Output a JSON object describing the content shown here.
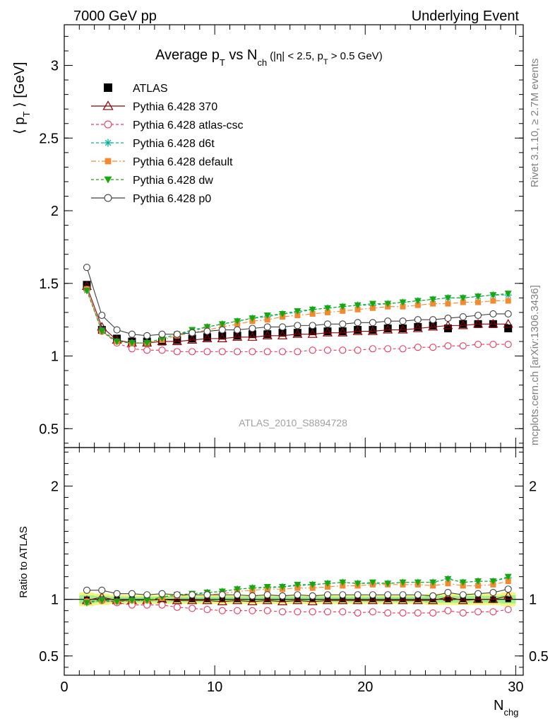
{
  "header": {
    "left": "7000 GeV pp",
    "right": "Underlying Event"
  },
  "side_texts": {
    "rivet": "Rivet 3.1.10, ≥ 2.7M events",
    "mcplots": "mcplots.cern.ch [arXiv:1306.3436]"
  },
  "chart_data": [
    {
      "type": "line",
      "title": "Average pT vs Nch (|η| < 2.5, pT > 0.5 GeV)",
      "title_parts": {
        "main": "Average p",
        "sub1": "T",
        "mid": " vs N",
        "sub2": "ch",
        "cut": "(|η| < 2.5, p",
        "sub3": "T",
        "cut_end": " > 0.5 GeV)"
      },
      "ylabel": "⟨ pT ⟩ [GeV]",
      "ylabel_parts": {
        "open": "⟨ p",
        "sub": "T",
        "close": " ⟩ [GeV]"
      },
      "watermark": "ATLAS_2010_S8894728",
      "xlim": [
        0,
        30.5
      ],
      "ylim": [
        0.37,
        3.28
      ],
      "yticks": [
        0.5,
        1,
        1.5,
        2,
        2.5,
        3
      ],
      "ytick_labels": [
        "0.5",
        "1",
        "1.5",
        "2",
        "2.5",
        "3"
      ],
      "x": [
        1.5,
        2.5,
        3.5,
        4.5,
        5.5,
        6.5,
        7.5,
        8.5,
        9.5,
        10.5,
        11.5,
        12.5,
        13.5,
        14.5,
        15.5,
        16.5,
        17.5,
        18.5,
        19.5,
        20.5,
        21.5,
        22.5,
        23.5,
        24.5,
        25.5,
        26.5,
        27.5,
        28.5,
        29.5
      ],
      "series": [
        {
          "name": "ATLAS",
          "marker": "filled-square",
          "color": "#000000",
          "dash": "none",
          "values": [
            1.49,
            1.18,
            1.12,
            1.1,
            1.1,
            1.1,
            1.11,
            1.12,
            1.13,
            1.14,
            1.14,
            1.15,
            1.15,
            1.16,
            1.16,
            1.17,
            1.17,
            1.17,
            1.18,
            1.18,
            1.19,
            1.19,
            1.2,
            1.21,
            1.19,
            1.22,
            1.22,
            1.22,
            1.19
          ]
        },
        {
          "name": "Pythia 6.428 370",
          "marker": "open-triangle",
          "color": "#8b0000",
          "dash": "solid",
          "values": [
            1.48,
            1.2,
            1.11,
            1.09,
            1.09,
            1.1,
            1.1,
            1.11,
            1.12,
            1.12,
            1.13,
            1.13,
            1.14,
            1.14,
            1.15,
            1.15,
            1.16,
            1.16,
            1.17,
            1.17,
            1.18,
            1.18,
            1.19,
            1.2,
            1.21,
            1.21,
            1.22,
            1.22,
            1.22
          ]
        },
        {
          "name": "Pythia 6.428 atlas-csc",
          "marker": "open-circle",
          "color": "#e8375f",
          "dash": "dashed",
          "values": [
            1.46,
            1.17,
            1.09,
            1.05,
            1.04,
            1.04,
            1.03,
            1.03,
            1.03,
            1.03,
            1.03,
            1.03,
            1.03,
            1.03,
            1.03,
            1.04,
            1.04,
            1.04,
            1.04,
            1.05,
            1.05,
            1.05,
            1.06,
            1.06,
            1.07,
            1.07,
            1.08,
            1.08,
            1.08
          ]
        },
        {
          "name": "Pythia 6.428 d6t",
          "marker": "star",
          "color": "#00b29b",
          "dash": "dashed",
          "values": [
            1.45,
            1.18,
            1.1,
            1.09,
            1.09,
            1.12,
            1.15,
            1.17,
            1.2,
            1.22,
            1.24,
            1.26,
            1.27,
            1.29,
            1.3,
            1.32,
            1.33,
            1.34,
            1.35,
            1.35,
            1.36,
            1.37,
            1.38,
            1.39,
            1.4,
            1.4,
            1.41,
            1.42,
            1.42
          ]
        },
        {
          "name": "Pythia 6.428 default",
          "marker": "filled-square-small",
          "color": "#f28a30",
          "dash": "dashdot",
          "values": [
            1.46,
            1.17,
            1.1,
            1.09,
            1.09,
            1.11,
            1.14,
            1.16,
            1.18,
            1.2,
            1.22,
            1.24,
            1.25,
            1.27,
            1.28,
            1.29,
            1.3,
            1.31,
            1.32,
            1.33,
            1.34,
            1.34,
            1.35,
            1.36,
            1.36,
            1.37,
            1.37,
            1.38,
            1.38
          ]
        },
        {
          "name": "Pythia 6.428 dw",
          "marker": "filled-triangle-down",
          "color": "#18a80e",
          "dash": "dashed",
          "values": [
            1.45,
            1.17,
            1.1,
            1.09,
            1.09,
            1.12,
            1.15,
            1.18,
            1.2,
            1.22,
            1.24,
            1.26,
            1.28,
            1.29,
            1.31,
            1.32,
            1.33,
            1.34,
            1.35,
            1.36,
            1.36,
            1.37,
            1.38,
            1.39,
            1.4,
            1.4,
            1.41,
            1.42,
            1.43
          ]
        },
        {
          "name": "Pythia 6.428 p0",
          "marker": "open-circle",
          "color": "#404040",
          "dash": "solid",
          "values": [
            1.61,
            1.28,
            1.18,
            1.15,
            1.14,
            1.15,
            1.15,
            1.16,
            1.17,
            1.18,
            1.18,
            1.19,
            1.2,
            1.2,
            1.21,
            1.21,
            1.22,
            1.22,
            1.23,
            1.23,
            1.24,
            1.24,
            1.25,
            1.25,
            1.26,
            1.27,
            1.28,
            1.29,
            1.29
          ]
        }
      ],
      "legend_position": "top-left"
    },
    {
      "type": "line",
      "ylabel": "Ratio to ATLAS",
      "xlabel": "Nchg",
      "xlabel_parts": {
        "main": "N",
        "sub": "chg"
      },
      "xlim": [
        0,
        30.5
      ],
      "ylim": [
        0.33,
        2.34
      ],
      "yticks": [
        0.5,
        1,
        2
      ],
      "ytick_labels": [
        "0.5",
        "1",
        "2"
      ],
      "xticks": [
        0,
        10,
        20,
        30
      ],
      "xtick_labels": [
        "0",
        "10",
        "20",
        "30"
      ],
      "x": [
        1.5,
        2.5,
        3.5,
        4.5,
        5.5,
        6.5,
        7.5,
        8.5,
        9.5,
        10.5,
        11.5,
        12.5,
        13.5,
        14.5,
        15.5,
        16.5,
        17.5,
        18.5,
        19.5,
        20.5,
        21.5,
        22.5,
        23.5,
        24.5,
        25.5,
        26.5,
        27.5,
        28.5,
        29.5
      ],
      "band_half_width": [
        0.06,
        0.05,
        0.04,
        0.04,
        0.04,
        0.04,
        0.04,
        0.04,
        0.04,
        0.04,
        0.04,
        0.04,
        0.04,
        0.04,
        0.04,
        0.04,
        0.04,
        0.04,
        0.04,
        0.04,
        0.04,
        0.04,
        0.04,
        0.05,
        0.05,
        0.05,
        0.05,
        0.05,
        0.06
      ],
      "series": [
        {
          "name": "Pythia 6.428 370",
          "values": [
            0.99,
            1.02,
            0.99,
            0.99,
            0.99,
            1.0,
            0.99,
            0.99,
            0.99,
            0.98,
            0.99,
            0.98,
            0.99,
            0.98,
            0.99,
            0.98,
            0.99,
            0.99,
            0.99,
            0.99,
            0.99,
            0.99,
            0.99,
            0.99,
            1.02,
            0.99,
            1.0,
            1.0,
            1.03
          ]
        },
        {
          "name": "Pythia 6.428 atlas-csc",
          "values": [
            0.98,
            0.99,
            0.97,
            0.95,
            0.95,
            0.95,
            0.93,
            0.92,
            0.91,
            0.9,
            0.9,
            0.9,
            0.9,
            0.89,
            0.89,
            0.89,
            0.89,
            0.89,
            0.88,
            0.89,
            0.88,
            0.88,
            0.88,
            0.88,
            0.9,
            0.88,
            0.89,
            0.89,
            0.91
          ]
        },
        {
          "name": "Pythia 6.428 d6t",
          "values": [
            0.97,
            1.0,
            0.98,
            0.99,
            0.99,
            1.02,
            1.04,
            1.04,
            1.06,
            1.07,
            1.09,
            1.1,
            1.1,
            1.11,
            1.12,
            1.13,
            1.14,
            1.15,
            1.14,
            1.14,
            1.14,
            1.15,
            1.15,
            1.15,
            1.18,
            1.15,
            1.16,
            1.16,
            1.19
          ]
        },
        {
          "name": "Pythia 6.428 default",
          "values": [
            0.98,
            0.99,
            0.98,
            0.99,
            0.99,
            1.01,
            1.03,
            1.04,
            1.04,
            1.05,
            1.07,
            1.08,
            1.09,
            1.09,
            1.1,
            1.1,
            1.11,
            1.12,
            1.12,
            1.13,
            1.13,
            1.13,
            1.13,
            1.12,
            1.14,
            1.12,
            1.12,
            1.13,
            1.16
          ]
        },
        {
          "name": "Pythia 6.428 dw",
          "values": [
            0.97,
            0.99,
            0.98,
            0.99,
            0.99,
            1.02,
            1.04,
            1.05,
            1.06,
            1.07,
            1.09,
            1.1,
            1.11,
            1.11,
            1.13,
            1.13,
            1.14,
            1.15,
            1.14,
            1.15,
            1.14,
            1.15,
            1.15,
            1.15,
            1.18,
            1.15,
            1.16,
            1.16,
            1.2
          ]
        },
        {
          "name": "Pythia 6.428 p0",
          "values": [
            1.08,
            1.08,
            1.05,
            1.05,
            1.04,
            1.05,
            1.04,
            1.04,
            1.04,
            1.04,
            1.04,
            1.03,
            1.04,
            1.03,
            1.04,
            1.03,
            1.04,
            1.04,
            1.04,
            1.04,
            1.04,
            1.04,
            1.04,
            1.03,
            1.06,
            1.04,
            1.05,
            1.06,
            1.09
          ]
        }
      ]
    }
  ]
}
